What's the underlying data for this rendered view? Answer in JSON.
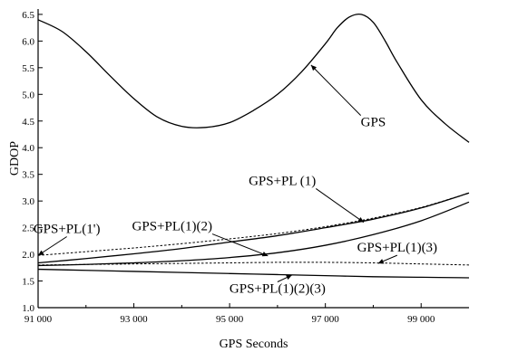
{
  "chart_data": {
    "type": "line",
    "title": "",
    "xlabel": "GPS Seconds",
    "ylabel": "GDOP",
    "xlim": [
      91000,
      100000
    ],
    "ylim": [
      1.0,
      6.6
    ],
    "x_ticks": [
      91000,
      93000,
      95000,
      97000,
      99000
    ],
    "x_tick_labels": [
      "91 000",
      "93 000",
      "95 000",
      "97 000",
      "99 000"
    ],
    "y_ticks": [
      1.0,
      1.5,
      2.0,
      2.5,
      3.0,
      3.5,
      4.0,
      4.5,
      5.0,
      5.5,
      6.0,
      6.5
    ],
    "y_tick_labels": [
      "1.0",
      "1.5",
      "2.0",
      "2.5",
      "3.0",
      "3.5",
      "4.0",
      "4.5",
      "5.0",
      "5.5",
      "6.0",
      "6.5"
    ],
    "grid": false,
    "series": [
      {
        "name": "GPS",
        "style": "solid",
        "x": [
          91000,
          91500,
          92000,
          92500,
          93000,
          93500,
          94000,
          94500,
          95000,
          95500,
          96000,
          96500,
          97000,
          97250,
          97500,
          97750,
          98000,
          98250,
          98500,
          99000,
          99500,
          100000
        ],
        "y": [
          6.4,
          6.18,
          5.8,
          5.35,
          4.92,
          4.57,
          4.4,
          4.38,
          4.47,
          4.7,
          5.0,
          5.42,
          5.95,
          6.25,
          6.45,
          6.5,
          6.35,
          6.0,
          5.6,
          4.9,
          4.45,
          4.1
        ]
      },
      {
        "name": "GPS+PL(1')",
        "style": "dashed",
        "x": [
          91000,
          92000,
          93000,
          94000,
          95000,
          96000,
          97000,
          98000,
          99000,
          100000
        ],
        "y": [
          1.98,
          2.05,
          2.12,
          2.2,
          2.29,
          2.39,
          2.52,
          2.68,
          2.88,
          3.15
        ]
      },
      {
        "name": "GPS+PL (1)",
        "style": "solid",
        "x": [
          91000,
          92000,
          93000,
          94000,
          95000,
          96000,
          97000,
          98000,
          99000,
          100000
        ],
        "y": [
          1.84,
          1.92,
          2.01,
          2.11,
          2.23,
          2.35,
          2.5,
          2.66,
          2.87,
          3.15
        ]
      },
      {
        "name": "GPS+PL(1)(2)",
        "style": "solid",
        "x": [
          91000,
          92000,
          93000,
          94000,
          95000,
          96000,
          97000,
          98000,
          99000,
          100000
        ],
        "y": [
          1.79,
          1.81,
          1.84,
          1.88,
          1.94,
          2.03,
          2.17,
          2.37,
          2.63,
          2.98
        ]
      },
      {
        "name": "GPS+PL(1)(3)",
        "style": "dashed",
        "x": [
          91000,
          92000,
          93000,
          94000,
          95000,
          96000,
          97000,
          98000,
          99000,
          100000
        ],
        "y": [
          1.8,
          1.81,
          1.82,
          1.83,
          1.84,
          1.85,
          1.85,
          1.84,
          1.82,
          1.8
        ]
      },
      {
        "name": "GPS+PL(1)(2)(3)",
        "style": "solid",
        "x": [
          91000,
          92000,
          93000,
          94000,
          95000,
          96000,
          97000,
          98000,
          99000,
          100000
        ],
        "y": [
          1.72,
          1.7,
          1.68,
          1.66,
          1.64,
          1.62,
          1.6,
          1.58,
          1.57,
          1.56
        ]
      }
    ],
    "annotations": [
      {
        "text": "GPS",
        "series": "GPS",
        "tx": 98000,
        "ty": 4.4,
        "anchor_x": 96700,
        "anchor_y": 5.55
      },
      {
        "text": "GPS+PL (1)",
        "series": "GPS+PL (1)",
        "tx": 96100,
        "ty": 3.3,
        "anchor_x": 97800,
        "anchor_y": 2.6
      },
      {
        "text": "GPS+PL(1')",
        "series": "GPS+PL(1')",
        "tx": 91600,
        "ty": 2.4,
        "anchor_x": 91000,
        "anchor_y": 1.98
      },
      {
        "text": "GPS+PL(1)(2)",
        "series": "GPS+PL(1)(2)",
        "tx": 93800,
        "ty": 2.45,
        "anchor_x": 95800,
        "anchor_y": 1.97
      },
      {
        "text": "GPS+PL(1)(3)",
        "series": "GPS+PL(1)(3)",
        "tx": 98500,
        "ty": 2.05,
        "anchor_x": 98100,
        "anchor_y": 1.83
      },
      {
        "text": "GPS+PL(1)(2)(3)",
        "series": "GPS+PL(1)(2)(3)",
        "tx": 96000,
        "ty": 1.28,
        "anchor_x": 96300,
        "anchor_y": 1.61
      }
    ]
  }
}
